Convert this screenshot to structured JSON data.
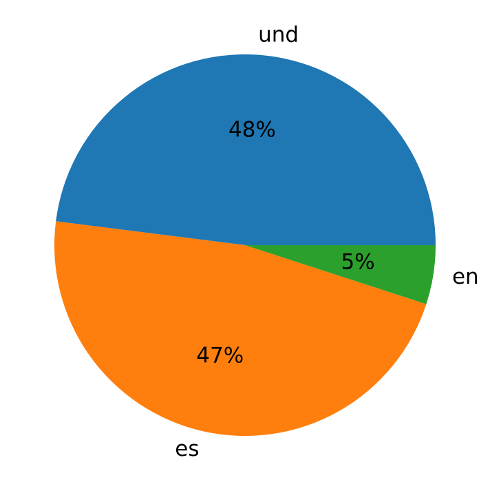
{
  "chart_data": {
    "type": "pie",
    "categories": [
      "und",
      "es",
      "en"
    ],
    "values": [
      48,
      47,
      5
    ],
    "value_labels": [
      "48%",
      "47%",
      "5%"
    ],
    "colors": [
      "#1f77b4",
      "#ff7f0e",
      "#2ca02c"
    ],
    "start_angle": 0,
    "direction": "counterclockwise"
  }
}
